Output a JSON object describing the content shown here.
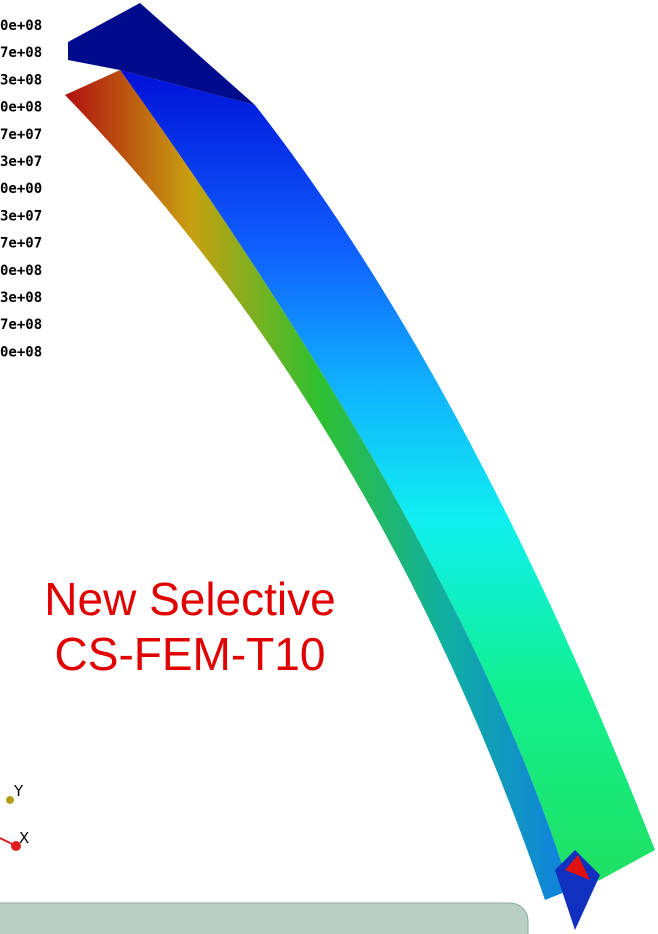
{
  "legend": {
    "labels": [
      "0e+08",
      "7e+08",
      "3e+08",
      "0e+08",
      "7e+07",
      "3e+07",
      "0e+00",
      "3e+07",
      "7e+07",
      "0e+08",
      "3e+08",
      "7e+08",
      "0e+08"
    ]
  },
  "caption": {
    "line1": "New Selective",
    "line2": "CS-FEM-T10"
  },
  "axes": {
    "y": "Y",
    "x": "X"
  }
}
